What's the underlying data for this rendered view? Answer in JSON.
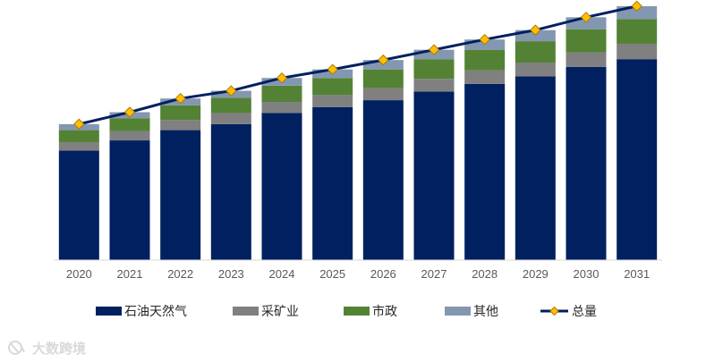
{
  "chart_data": {
    "type": "bar",
    "stacked": true,
    "title": "",
    "xlabel": "",
    "ylabel": "",
    "categories": [
      "2020",
      "2021",
      "2022",
      "2023",
      "2024",
      "2025",
      "2026",
      "2027",
      "2028",
      "2029",
      "2030",
      "2031"
    ],
    "ylim": [
      0,
      300
    ],
    "grid": false,
    "legend_position": "bottom",
    "series": [
      {
        "name": "石油天然气",
        "kind": "bar",
        "color": "#002060",
        "values": [
          128,
          140,
          152,
          159,
          172,
          179,
          187,
          197,
          206,
          215,
          226,
          235
        ]
      },
      {
        "name": "采矿业",
        "kind": "bar",
        "color": "#808080",
        "values": [
          10,
          11,
          12,
          13,
          13,
          14,
          14,
          15,
          16,
          16,
          17,
          18
        ]
      },
      {
        "name": "市政",
        "kind": "bar",
        "color": "#548235",
        "values": [
          14,
          15,
          17,
          18,
          19,
          20,
          22,
          23,
          24,
          25,
          27,
          29
        ]
      },
      {
        "name": "其他",
        "kind": "bar",
        "color": "#8497B0",
        "values": [
          7,
          7,
          8,
          8,
          9,
          10,
          11,
          11,
          12,
          13,
          14,
          15
        ]
      },
      {
        "name": "总量",
        "kind": "line",
        "color": "#002060",
        "marker_color": "#FFC000",
        "values": [
          159,
          173,
          189,
          198,
          213,
          223,
          234,
          246,
          258,
          269,
          284,
          297
        ]
      }
    ]
  },
  "watermark": {
    "text": "大数跨境"
  }
}
